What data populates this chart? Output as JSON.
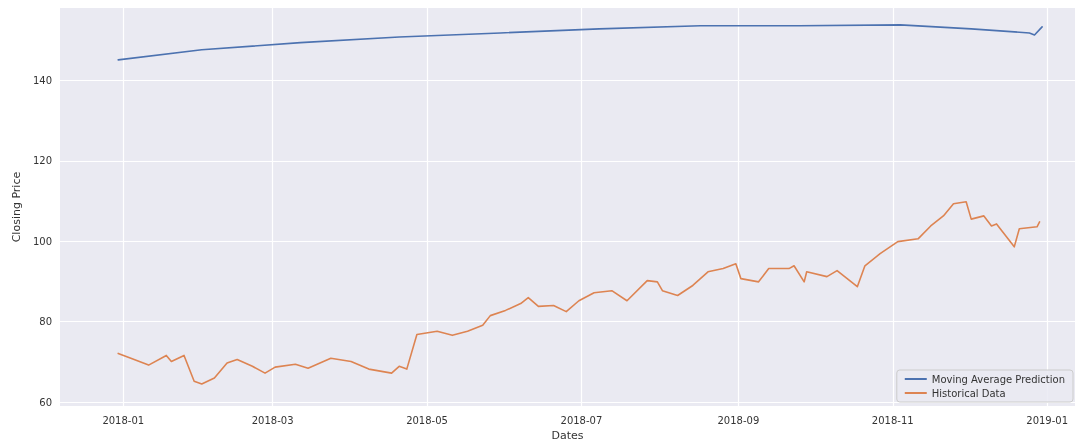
{
  "chart_data": {
    "type": "line",
    "xlabel": "Dates",
    "ylabel": "Closing Price",
    "xlim": [
      "2017-12-07",
      "2019-01-12"
    ],
    "ylim": [
      59,
      158
    ],
    "xticks": [
      "2018-01",
      "2018-03",
      "2018-05",
      "2018-07",
      "2018-09",
      "2018-11",
      "2019-01"
    ],
    "yticks": [
      60,
      80,
      100,
      120,
      140
    ],
    "grid": true,
    "legend": "bottom right",
    "marker": "none",
    "line_style": "solid",
    "series": [
      {
        "name": "Moving Average Prediction",
        "color": "#4c72b0",
        "x": [
          "2017-12-30",
          "2018-02-01",
          "2018-03-12",
          "2018-04-20",
          "2018-05-30",
          "2018-07-08",
          "2018-08-17",
          "2018-09-25",
          "2018-11-04",
          "2018-12-02",
          "2018-12-25",
          "2018-12-27",
          "2018-12-30"
        ],
        "values": [
          145.1,
          147.6,
          149.4,
          150.8,
          151.8,
          152.8,
          153.6,
          153.6,
          153.8,
          152.8,
          151.8,
          151.3,
          153.3
        ]
      },
      {
        "name": "Historical Data",
        "color": "#dd8452",
        "x": [
          "2017-12-30",
          "2018-01-04",
          "2018-01-11",
          "2018-01-18",
          "2018-01-20",
          "2018-01-25",
          "2018-01-29",
          "2018-02-01",
          "2018-02-06",
          "2018-02-11",
          "2018-02-15",
          "2018-02-21",
          "2018-02-26",
          "2018-03-02",
          "2018-03-10",
          "2018-03-15",
          "2018-03-24",
          "2018-04-01",
          "2018-04-08",
          "2018-04-17",
          "2018-04-20",
          "2018-04-23",
          "2018-04-27",
          "2018-05-05",
          "2018-05-11",
          "2018-05-17",
          "2018-05-23",
          "2018-05-26",
          "2018-06-01",
          "2018-06-07",
          "2018-06-10",
          "2018-06-14",
          "2018-06-20",
          "2018-06-25",
          "2018-06-30",
          "2018-07-06",
          "2018-07-13",
          "2018-07-19",
          "2018-07-27",
          "2018-07-31",
          "2018-08-02",
          "2018-08-08",
          "2018-08-14",
          "2018-08-20",
          "2018-08-26",
          "2018-08-31",
          "2018-09-02",
          "2018-09-09",
          "2018-09-13",
          "2018-09-21",
          "2018-09-23",
          "2018-09-27",
          "2018-09-28",
          "2018-10-06",
          "2018-10-10",
          "2018-10-18",
          "2018-10-21",
          "2018-10-27",
          "2018-11-03",
          "2018-11-11",
          "2018-11-16",
          "2018-11-21",
          "2018-11-25",
          "2018-11-30",
          "2018-12-02",
          "2018-12-07",
          "2018-12-10",
          "2018-12-12",
          "2018-12-19",
          "2018-12-21",
          "2018-12-28",
          "2018-12-29"
        ],
        "values": [
          72.1,
          70.9,
          69.2,
          71.6,
          70.1,
          71.6,
          65.2,
          64.5,
          66,
          69.7,
          70.6,
          68.9,
          67.2,
          68.7,
          69.4,
          68.4,
          70.9,
          70.1,
          68.2,
          67.2,
          68.9,
          68.2,
          76.8,
          77.6,
          76.6,
          77.6,
          79.1,
          81.5,
          82.8,
          84.5,
          86,
          83.8,
          84,
          82.5,
          85.2,
          87.2,
          87.7,
          85.2,
          90.2,
          89.9,
          87.7,
          86.5,
          89,
          92.4,
          93.2,
          94.4,
          90.7,
          89.9,
          93.2,
          93.2,
          93.9,
          89.9,
          92.4,
          91.2,
          92.7,
          88.7,
          93.9,
          96.9,
          99.9,
          100.6,
          103.8,
          106.3,
          109.3,
          109.8,
          105.5,
          106.3,
          103.8,
          104.3,
          98.6,
          103.1,
          103.6,
          104.8
        ]
      }
    ]
  }
}
